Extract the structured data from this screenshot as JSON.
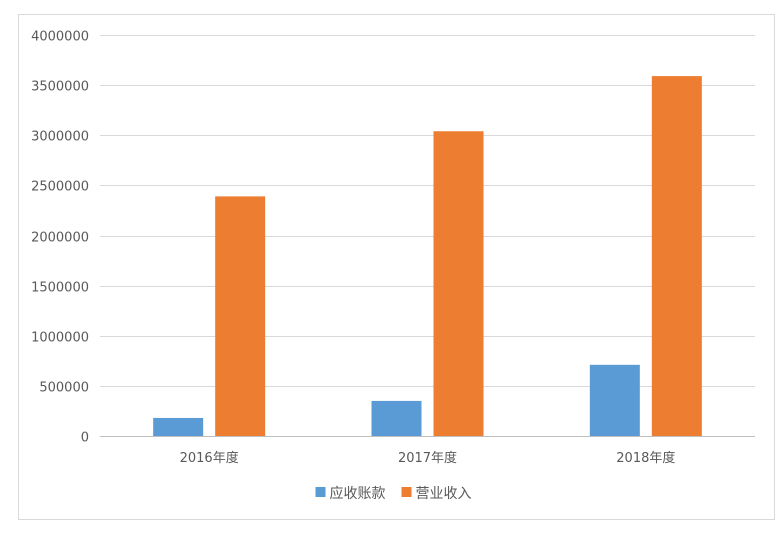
{
  "chart_data": {
    "type": "bar",
    "categories": [
      "2016年度",
      "2017年度",
      "2018年度"
    ],
    "series": [
      {
        "name": "应收账款",
        "color": "#5b9bd5",
        "values": [
          180000,
          350000,
          710000
        ]
      },
      {
        "name": "营业收入",
        "color": "#ed7d31",
        "values": [
          2390000,
          3040000,
          3590000
        ]
      }
    ],
    "ylim": [
      0,
      4000000
    ],
    "yticks": [
      "0",
      "500000",
      "1000000",
      "1500000",
      "2000000",
      "2500000",
      "3000000",
      "3500000",
      "4000000"
    ],
    "grid": true,
    "legend": "bottom"
  }
}
